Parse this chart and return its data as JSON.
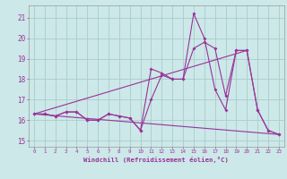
{
  "x": [
    0,
    1,
    2,
    3,
    4,
    5,
    6,
    7,
    8,
    9,
    10,
    11,
    12,
    13,
    14,
    15,
    16,
    17,
    18,
    19,
    20,
    21,
    22,
    23
  ],
  "line1": [
    16.3,
    16.3,
    16.2,
    16.4,
    16.4,
    16.0,
    16.0,
    16.3,
    16.2,
    16.1,
    15.5,
    17.0,
    18.2,
    18.0,
    18.0,
    21.2,
    20.0,
    17.5,
    16.5,
    19.4,
    19.4,
    16.5,
    15.5,
    15.3
  ],
  "line2": [
    16.3,
    16.3,
    16.2,
    16.4,
    16.4,
    16.0,
    16.0,
    16.3,
    16.2,
    16.1,
    15.5,
    18.5,
    18.3,
    18.0,
    18.0,
    19.5,
    19.8,
    19.5,
    17.2,
    19.4,
    19.4,
    16.5,
    15.5,
    15.3
  ],
  "line3_x": [
    0,
    23
  ],
  "line3_y": [
    16.3,
    15.3
  ],
  "line4_x": [
    0,
    20
  ],
  "line4_y": [
    16.3,
    19.4
  ],
  "color": "#993399",
  "bg_color": "#cce8e8",
  "grid_color": "#aacccc",
  "xlabel": "Windchill (Refroidissement éolien,°C)",
  "ylabel_ticks": [
    15,
    16,
    17,
    18,
    19,
    20,
    21
  ],
  "xticks": [
    0,
    1,
    2,
    3,
    4,
    5,
    6,
    7,
    8,
    9,
    10,
    11,
    12,
    13,
    14,
    15,
    16,
    17,
    18,
    19,
    20,
    21,
    22,
    23
  ],
  "xlim": [
    -0.5,
    23.5
  ],
  "ylim": [
    14.7,
    21.6
  ]
}
